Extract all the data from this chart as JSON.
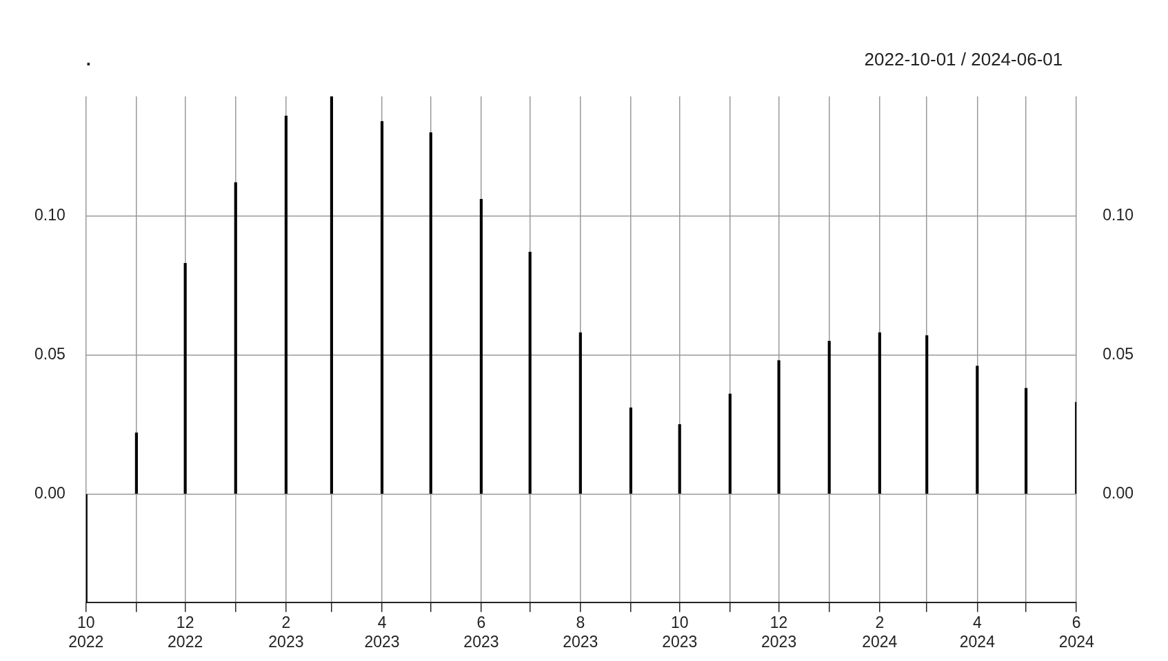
{
  "chart_data": {
    "type": "bar",
    "title": ".",
    "subtitle": "2022-10-01 / 2024-06-01",
    "x": [
      "2022-10",
      "2022-11",
      "2022-12",
      "2023-01",
      "2023-02",
      "2023-03",
      "2023-04",
      "2023-05",
      "2023-06",
      "2023-07",
      "2023-08",
      "2023-09",
      "2023-10",
      "2023-11",
      "2023-12",
      "2024-01",
      "2024-02",
      "2024-03",
      "2024-04",
      "2024-05",
      "2024-06"
    ],
    "values": [
      -0.039,
      0.022,
      0.083,
      0.112,
      0.136,
      0.143,
      0.134,
      0.13,
      0.106,
      0.087,
      0.058,
      0.031,
      0.025,
      0.036,
      0.048,
      0.055,
      0.058,
      0.057,
      0.046,
      0.038,
      0.033
    ],
    "color": "#000000",
    "xlim": [
      "2022-10",
      "2024-06"
    ],
    "xticks": [
      {
        "value": "2022-10",
        "label": "10\n2022"
      },
      {
        "value": "2022-11",
        "label": null
      },
      {
        "value": "2022-12",
        "label": "12\n2022"
      },
      {
        "value": "2023-01",
        "label": null
      },
      {
        "value": "2023-02",
        "label": "2\n2023"
      },
      {
        "value": "2023-03",
        "label": null
      },
      {
        "value": "2023-04",
        "label": "4\n2023"
      },
      {
        "value": "2023-05",
        "label": null
      },
      {
        "value": "2023-06",
        "label": "6\n2023"
      },
      {
        "value": "2023-07",
        "label": null
      },
      {
        "value": "2023-08",
        "label": "8\n2023"
      },
      {
        "value": "2023-09",
        "label": null
      },
      {
        "value": "2023-10",
        "label": "10\n2023"
      },
      {
        "value": "2023-11",
        "label": null
      },
      {
        "value": "2023-12",
        "label": "12\n2023"
      },
      {
        "value": "2024-01",
        "label": null
      },
      {
        "value": "2024-02",
        "label": "2\n2024"
      },
      {
        "value": "2024-03",
        "label": null
      },
      {
        "value": "2024-04",
        "label": "4\n2024"
      },
      {
        "value": "2024-05",
        "label": null
      },
      {
        "value": "2024-06",
        "label": "6\n2024"
      }
    ],
    "ylim": [
      -0.039,
      0.143
    ],
    "yticks": [
      {
        "value": 0,
        "label": "0.00"
      },
      {
        "value": 0.05,
        "label": "0.05"
      },
      {
        "value": 0.1,
        "label": "0.10"
      }
    ],
    "y2lim": [
      -0.039,
      0.143
    ],
    "y2ticks": [
      {
        "value": 0,
        "label": "0.00"
      },
      {
        "value": 0.05,
        "label": "0.05"
      },
      {
        "value": 0.1,
        "label": "0.10"
      }
    ],
    "grid": true,
    "legend": false
  }
}
